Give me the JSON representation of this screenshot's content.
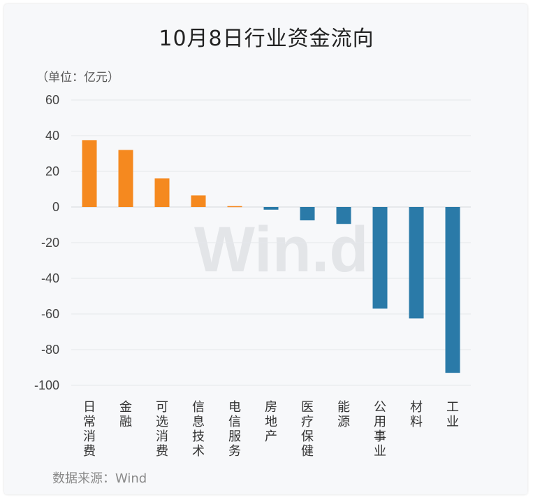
{
  "title": "10月8日行业资金流向",
  "unit_label": "（单位：亿元）",
  "source": "数据来源：Wind",
  "watermark": "Win.d",
  "colors": {
    "positive": "#f5891f",
    "negative": "#2a7aa8",
    "grid": "#e6e8eb",
    "zero": "#d6d9dc"
  },
  "chart_data": {
    "type": "bar",
    "title": "10月8日行业资金流向",
    "ylabel": "（单位：亿元）",
    "ylim": [
      -100,
      60
    ],
    "yticks": [
      60,
      40,
      20,
      0,
      -20,
      -40,
      -60,
      -80,
      -100
    ],
    "grid": true,
    "categories": [
      "日常消费",
      "金融",
      "可选消费",
      "信息技术",
      "电信服务",
      "房地产",
      "医疗保健",
      "能源",
      "公用事业",
      "材料",
      "工业"
    ],
    "values": [
      37.5,
      32,
      16,
      6.5,
      0.5,
      -1.5,
      -7.5,
      -9.5,
      -57,
      -62.5,
      -93
    ]
  }
}
